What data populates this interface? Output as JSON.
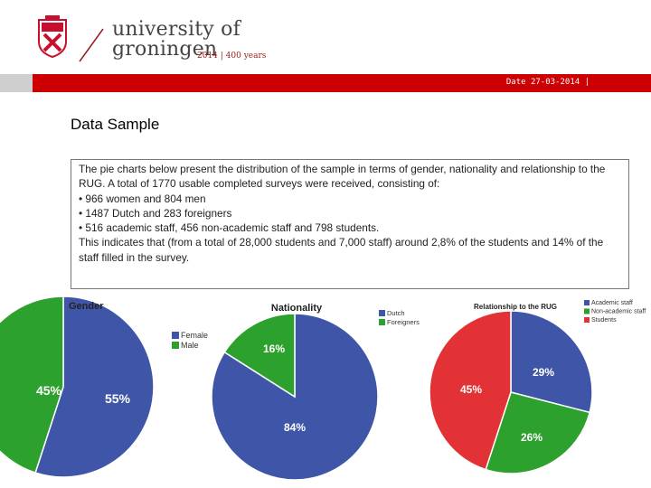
{
  "header": {
    "wordmark_line1": "university of",
    "wordmark_line2": "groningen",
    "anniversary": "2014 | 400 years",
    "date": "Date 27-03-2014 |"
  },
  "colors": {
    "red": "#cc0000",
    "blue": "#3f56a8",
    "green": "#2da12d",
    "pie_red": "#e23236"
  },
  "content": {
    "title": "Data Sample",
    "intro": "The pie charts below present the distribution of the sample in terms of gender, nationality and relationship to the RUG. A total of 1770 usable completed surveys were received, consisting of:",
    "bullets": [
      "966 women and 804 men",
      "1487 Dutch and 283 foreigners",
      "516 academic staff, 456 non-academic staff and 798 students."
    ],
    "conclusion": "This indicates that (from a total of 28,000 students and 7,000 staff) around 2,8%  of the students and 14% of the staff filled in the survey."
  },
  "chart_data": [
    {
      "type": "pie",
      "title": "Gender",
      "categories": [
        "Female",
        "Male"
      ],
      "values": [
        55,
        45
      ],
      "labels": [
        "55%",
        "45%"
      ],
      "colors": [
        "#3f56a8",
        "#2da12d"
      ]
    },
    {
      "type": "pie",
      "title": "Nationality",
      "categories": [
        "Dutch",
        "Foreigners"
      ],
      "values": [
        84,
        16
      ],
      "labels": [
        "84%",
        "16%"
      ],
      "colors": [
        "#3f56a8",
        "#2da12d"
      ]
    },
    {
      "type": "pie",
      "title": "Relationship to the RUG",
      "categories": [
        "Academic staff",
        "Non-academic staff",
        "Students"
      ],
      "values": [
        29,
        26,
        45
      ],
      "labels": [
        "29%",
        "26%",
        "45%"
      ],
      "colors": [
        "#3f56a8",
        "#2da12d",
        "#e23236"
      ]
    }
  ]
}
